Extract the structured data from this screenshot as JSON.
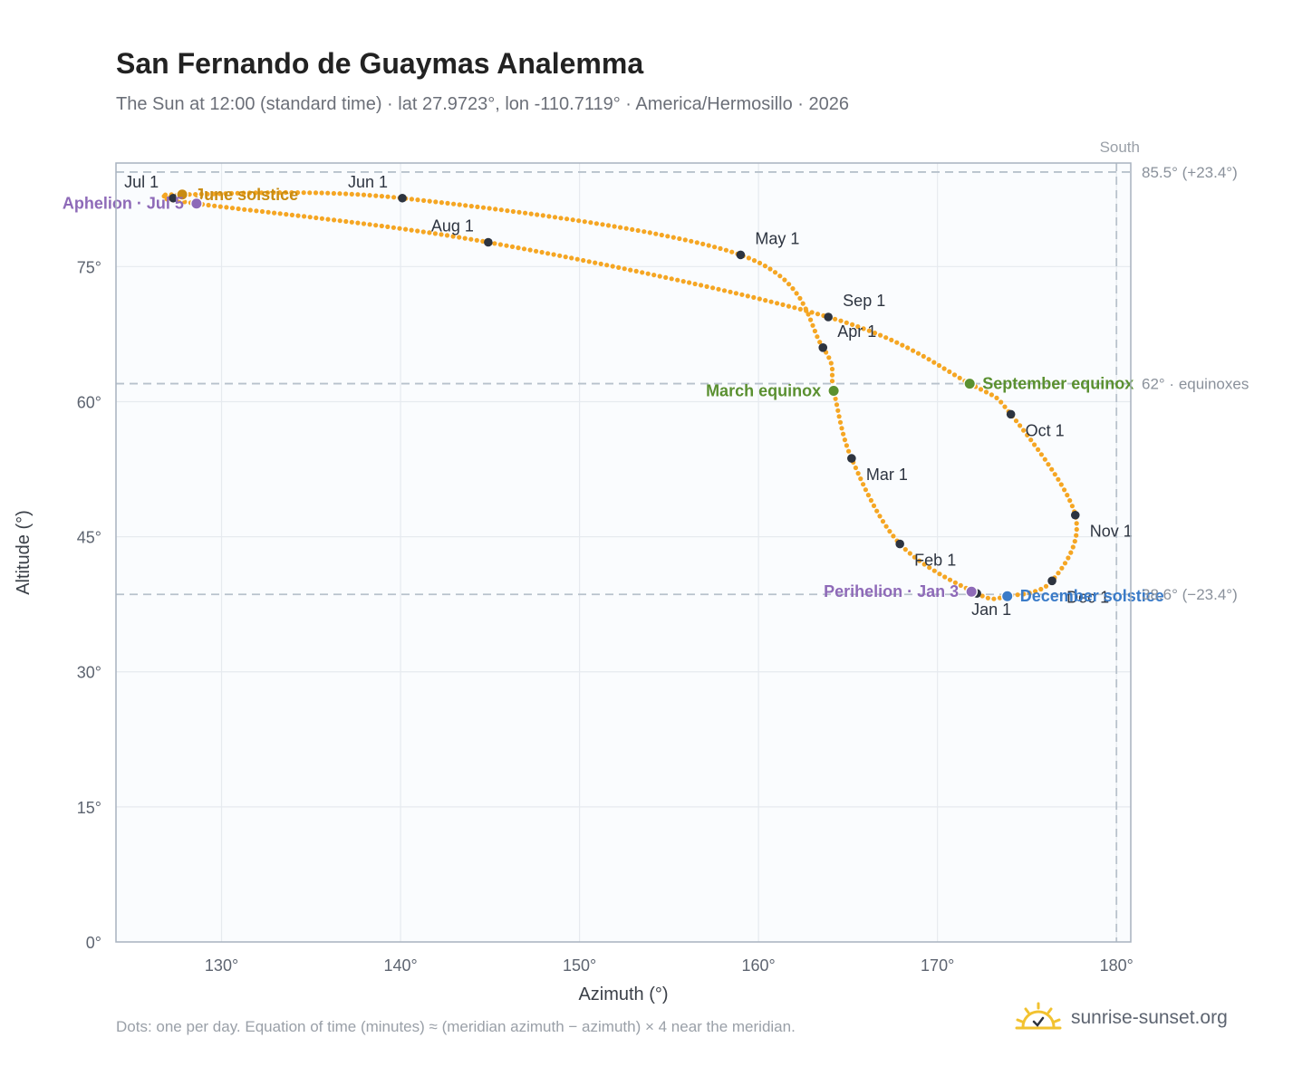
{
  "header": {
    "title": "San Fernando de Guaymas Analemma",
    "subtitle": "The Sun at 12:00 (standard time) · lat 27.9723°, lon -110.7119° · America/Hermosillo · 2026"
  },
  "footer": {
    "note": "Dots: one per day. Equation of time (minutes) ≈ (meridian azimuth − azimuth) × 4 near the meridian.",
    "brand": "sunrise-sunset.org"
  },
  "colors": {
    "curve": "#f5a623",
    "month_marker": "#2d3440",
    "june_solstice": "#c98c12",
    "december_solstice": "#3a7bc8",
    "equinox": "#5a9030",
    "aphelion_perihelion": "#8e6ab8",
    "reference_line": "#b8c2cc",
    "plot_background": "#fafcfe"
  },
  "chart_data": {
    "type": "scatter",
    "xlabel": "Azimuth (°)",
    "ylabel": "Altitude (°)",
    "xlim": [
      124.1,
      180.8
    ],
    "ylim": [
      0,
      86.5
    ],
    "x_ticks": [
      "130°",
      "140°",
      "150°",
      "160°",
      "170°",
      "180°"
    ],
    "y_ticks": [
      "0°",
      "15°",
      "30°",
      "45°",
      "60°",
      "75°"
    ],
    "grid": true,
    "south_label": "South",
    "south_azimuth": 180,
    "reference_lines": [
      {
        "altitude": 85.5,
        "label": "85.5° (+23.4°)"
      },
      {
        "altitude": 62.0,
        "label": "62° · equinoxes"
      },
      {
        "altitude": 38.6,
        "label": "38.6° (−23.4°)"
      }
    ],
    "path_keypoints": [
      {
        "date": "Jan 1",
        "azimuth": 172.2,
        "altitude": 38.7
      },
      {
        "date": "Feb 1",
        "azimuth": 167.9,
        "altitude": 44.2
      },
      {
        "date": "Mar 1",
        "azimuth": 165.2,
        "altitude": 53.7
      },
      {
        "date": "Mar 20",
        "azimuth": 164.2,
        "altitude": 61.2
      },
      {
        "date": "Apr 1",
        "azimuth": 163.6,
        "altitude": 66.0
      },
      {
        "date": "May 1",
        "azimuth": 159.0,
        "altitude": 76.3
      },
      {
        "date": "Jun 1",
        "azimuth": 140.1,
        "altitude": 82.6
      },
      {
        "date": "Jun 21",
        "azimuth": 127.8,
        "altitude": 83.0
      },
      {
        "date": "Jul 1",
        "azimuth": 127.3,
        "altitude": 82.6
      },
      {
        "date": "Jul 5",
        "azimuth": 128.6,
        "altitude": 82.0
      },
      {
        "date": "Aug 1",
        "azimuth": 144.9,
        "altitude": 77.7
      },
      {
        "date": "Sep 1",
        "azimuth": 163.9,
        "altitude": 69.4
      },
      {
        "date": "Sep 23",
        "azimuth": 171.8,
        "altitude": 62.0
      },
      {
        "date": "Oct 1",
        "azimuth": 174.1,
        "altitude": 58.6
      },
      {
        "date": "Nov 1",
        "azimuth": 177.7,
        "altitude": 47.4
      },
      {
        "date": "Dec 1",
        "azimuth": 176.4,
        "altitude": 40.1
      },
      {
        "date": "Dec 21",
        "azimuth": 173.9,
        "altitude": 38.4
      },
      {
        "date": "Jan 1",
        "azimuth": 172.2,
        "altitude": 38.7
      }
    ],
    "month_markers": [
      {
        "label": "Jan 1",
        "azimuth": 172.2,
        "altitude": 38.7,
        "anchor": "below"
      },
      {
        "label": "Feb 1",
        "azimuth": 167.9,
        "altitude": 44.2,
        "anchor": "below-right"
      },
      {
        "label": "Mar 1",
        "azimuth": 165.2,
        "altitude": 53.7,
        "anchor": "below-right"
      },
      {
        "label": "Apr 1",
        "azimuth": 163.6,
        "altitude": 66.0,
        "anchor": "above-right"
      },
      {
        "label": "May 1",
        "azimuth": 159.0,
        "altitude": 76.3,
        "anchor": "above-right"
      },
      {
        "label": "Jun 1",
        "azimuth": 140.1,
        "altitude": 82.6,
        "anchor": "above-left"
      },
      {
        "label": "Jul 1",
        "azimuth": 127.3,
        "altitude": 82.6,
        "anchor": "above-left"
      },
      {
        "label": "Aug 1",
        "azimuth": 144.9,
        "altitude": 77.7,
        "anchor": "above-left"
      },
      {
        "label": "Sep 1",
        "azimuth": 163.9,
        "altitude": 69.4,
        "anchor": "above-right"
      },
      {
        "label": "Oct 1",
        "azimuth": 174.1,
        "altitude": 58.6,
        "anchor": "below-right"
      },
      {
        "label": "Nov 1",
        "azimuth": 177.7,
        "altitude": 47.4,
        "anchor": "below-right"
      },
      {
        "label": "Dec 1",
        "azimuth": 176.4,
        "altitude": 40.1,
        "anchor": "below-right"
      }
    ],
    "events": [
      {
        "label": "June solstice",
        "azimuth": 127.8,
        "altitude": 83.0,
        "color_key": "june_solstice",
        "anchor": "right"
      },
      {
        "label": "Aphelion · Jul 5",
        "azimuth": 128.6,
        "altitude": 82.0,
        "color_key": "aphelion_perihelion",
        "anchor": "left"
      },
      {
        "label": "March equinox",
        "azimuth": 164.2,
        "altitude": 61.2,
        "color_key": "equinox",
        "anchor": "left"
      },
      {
        "label": "September equinox",
        "azimuth": 171.8,
        "altitude": 62.0,
        "color_key": "equinox",
        "anchor": "right"
      },
      {
        "label": "Perihelion · Jan 3",
        "azimuth": 171.9,
        "altitude": 38.9,
        "color_key": "aphelion_perihelion",
        "anchor": "left"
      },
      {
        "label": "December solstice",
        "azimuth": 173.9,
        "altitude": 38.4,
        "color_key": "december_solstice",
        "anchor": "right"
      }
    ]
  }
}
